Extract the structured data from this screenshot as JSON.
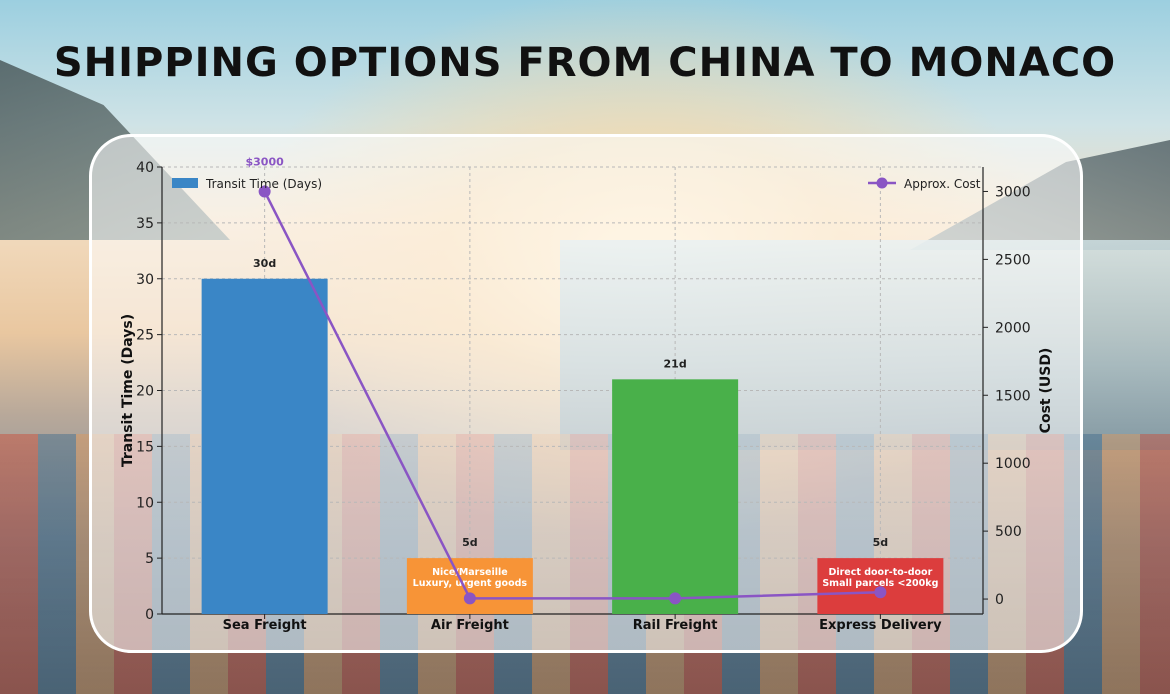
{
  "title": "SHIPPING OPTIONS FROM CHINA TO MONACO",
  "chart_data": {
    "type": "bar",
    "categories": [
      "Sea Freight",
      "Air Freight",
      "Rail Freight",
      "Express Delivery"
    ],
    "series": [
      {
        "name": "Transit Time (Days)",
        "axis": "left",
        "values": [
          30,
          5,
          21,
          5
        ],
        "data_labels": [
          "30d",
          "5d",
          "21d",
          "5d"
        ],
        "colors": [
          "#3a86c6",
          "#f79437",
          "#49b04a",
          "#dc3d3d"
        ]
      },
      {
        "name": "Approx. Cost",
        "type": "line",
        "axis": "right",
        "values": [
          3000,
          5,
          5,
          50
        ],
        "color": "#8a55c4",
        "data_labels": [
          "$3000",
          "",
          "",
          ""
        ]
      }
    ],
    "bar_notes": [
      "",
      [
        "Nice/Marseille",
        "Luxury, urgent goods"
      ],
      "",
      [
        "Direct door-to-door",
        "Small parcels <200kg"
      ]
    ],
    "ylabel": "Transit Time (Days)",
    "ylim": [
      0,
      40
    ],
    "yticks": [
      0,
      5,
      10,
      15,
      20,
      25,
      30,
      35,
      40
    ],
    "y2label": "Cost (USD)",
    "y2lim": [
      -110,
      3180
    ],
    "y2ticks": [
      0,
      500,
      1000,
      1500,
      2000,
      2500,
      3000
    ],
    "grid": true,
    "legend_left": "top-left",
    "legend_right": "top-right"
  }
}
